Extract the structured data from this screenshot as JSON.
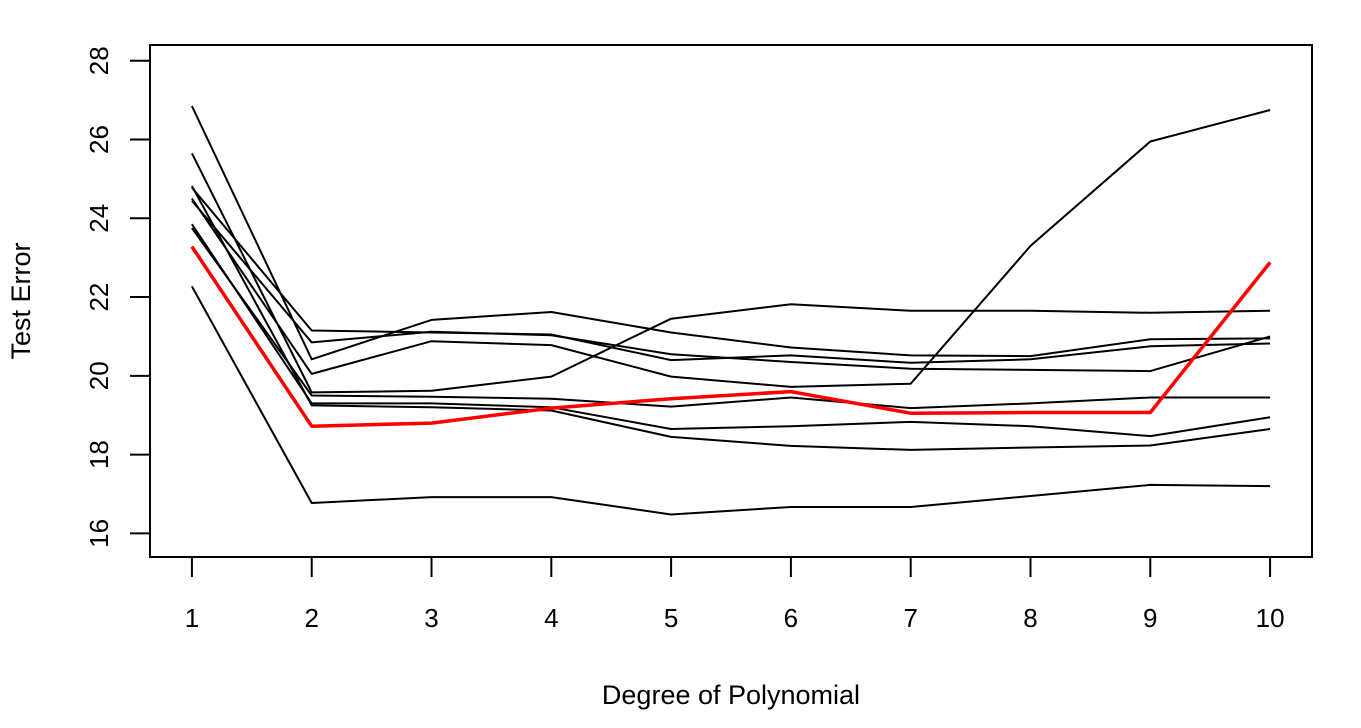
{
  "chart_data": {
    "type": "line",
    "title": "",
    "xlabel": "Degree of Polynomial",
    "ylabel": "Test Error",
    "x": [
      1,
      2,
      3,
      4,
      5,
      6,
      7,
      8,
      9,
      10
    ],
    "xlim": [
      0.65,
      10.35
    ],
    "ylim": [
      15.4,
      28.4
    ],
    "xticks": [
      1,
      2,
      3,
      4,
      5,
      6,
      7,
      8,
      9,
      10
    ],
    "yticks": [
      16,
      18,
      20,
      22,
      24,
      26,
      28
    ],
    "grid": false,
    "legend": "none",
    "colors": {
      "highlight": "#ff0000",
      "default": "#000000"
    },
    "series": [
      {
        "values": [
          26.85,
          20.42,
          21.42,
          21.62,
          21.1,
          20.72,
          20.52,
          20.5,
          20.93,
          20.95
        ],
        "color": "#000000"
      },
      {
        "values": [
          25.65,
          19.58,
          19.62,
          19.98,
          21.45,
          21.82,
          21.65,
          21.65,
          21.6,
          21.65
        ],
        "color": "#000000"
      },
      {
        "values": [
          24.82,
          19.25,
          19.2,
          19.12,
          18.45,
          18.22,
          18.12,
          18.18,
          18.23,
          18.65
        ],
        "color": "#000000"
      },
      {
        "values": [
          24.78,
          21.15,
          21.1,
          21.05,
          20.4,
          20.52,
          20.33,
          20.42,
          20.75,
          20.82
        ],
        "color": "#000000"
      },
      {
        "values": [
          24.5,
          20.05,
          20.88,
          20.78,
          19.98,
          19.72,
          19.8,
          23.3,
          25.95,
          26.75
        ],
        "color": "#000000"
      },
      {
        "values": [
          24.45,
          20.85,
          21.12,
          21.03,
          20.55,
          20.35,
          20.18,
          20.15,
          20.12,
          21.0
        ],
        "color": "#000000"
      },
      {
        "values": [
          23.85,
          19.3,
          19.3,
          19.2,
          18.65,
          18.72,
          18.83,
          18.72,
          18.47,
          18.95
        ],
        "color": "#000000"
      },
      {
        "values": [
          23.75,
          19.5,
          19.47,
          19.42,
          19.22,
          19.45,
          19.18,
          19.3,
          19.45,
          19.45
        ],
        "color": "#000000"
      },
      {
        "values": [
          22.27,
          16.77,
          16.92,
          16.92,
          16.48,
          16.67,
          16.67,
          16.95,
          17.23,
          17.2
        ],
        "color": "#000000"
      },
      {
        "values": [
          23.28,
          18.72,
          18.8,
          19.18,
          19.42,
          19.6,
          19.05,
          19.07,
          19.07,
          22.88
        ],
        "color": "#ff0000",
        "highlight": true
      }
    ]
  }
}
